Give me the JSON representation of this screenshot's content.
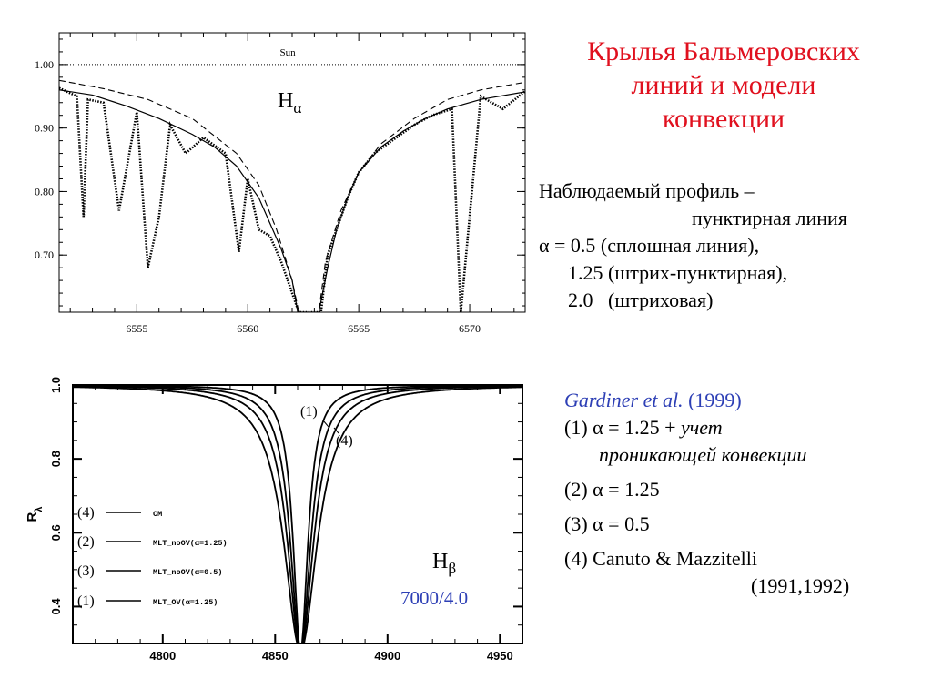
{
  "title": {
    "lines": [
      "Крылья Бальмеровских",
      "линий и модели",
      "конвекции"
    ],
    "color": "#e0101e"
  },
  "description": {
    "line1": "Наблюдаемый профиль –",
    "line2": "пунктирная линия",
    "line3": "α = 0.5 (сплошная линия),",
    "line4": "1.25 (штрих-пунктирная),",
    "line5": "2.0   (штриховая)"
  },
  "reference": {
    "author": "Gardiner et al.",
    "year": "(1999)",
    "item1_prefix": "(1) α = 1.25 +",
    "item1_word": "учет",
    "item1_cont": "проникающей конвекции",
    "item2": "(2) α = 1.25",
    "item3": "(3) α = 0.5",
    "item4": "(4) Canuto & Mazzitelli",
    "item4_years": "(1991,1992)",
    "accent_color": "#2d3fb5"
  },
  "chart_data": [
    {
      "type": "line",
      "title": "",
      "xlabel": "",
      "ylabel": "",
      "xlim": [
        6551.5,
        6572.5
      ],
      "ylim": [
        0.61,
        1.05
      ],
      "x_ticks": [
        6555,
        6560,
        6565,
        6570
      ],
      "x_tick_labels": [
        "6555",
        "6560",
        "6565",
        "6570"
      ],
      "y_ticks": [
        0.7,
        0.8,
        0.9,
        1.0
      ],
      "y_tick_labels": [
        "0.70",
        "0.80",
        "0.90",
        "1.00"
      ],
      "reference_line": {
        "y": 1.0,
        "label": "Sun"
      },
      "line_label": "Hα",
      "line_label_main": "H",
      "line_label_sub": "α",
      "series": [
        {
          "style": "dotted",
          "x": [
            6551.5,
            6552.3,
            6552.6,
            6552.8,
            6553.5,
            6554.2,
            6555.0,
            6555.5,
            6556.0,
            6556.5,
            6557.2,
            6558.0,
            6559.0,
            6559.6,
            6560.0,
            6560.5,
            6561.0,
            6561.5,
            6562.0,
            6562.3,
            6563.3,
            6563.6,
            6564.0,
            6564.5,
            6565.0,
            6565.7,
            6566.5,
            6567.5,
            6568.3,
            6569.2,
            6569.6,
            6570.5,
            6571.5,
            6572.5
          ],
          "y": [
            0.963,
            0.95,
            0.76,
            0.945,
            0.94,
            0.77,
            0.925,
            0.68,
            0.76,
            0.905,
            0.86,
            0.885,
            0.86,
            0.705,
            0.82,
            0.74,
            0.73,
            0.69,
            0.64,
            0.61,
            0.61,
            0.7,
            0.74,
            0.79,
            0.83,
            0.86,
            0.88,
            0.905,
            0.92,
            0.93,
            0.61,
            0.95,
            0.93,
            0.958
          ]
        },
        {
          "style": "solid",
          "x": [
            6551.5,
            6553.0,
            6554.5,
            6556.0,
            6557.5,
            6558.5,
            6559.5,
            6560.5,
            6561.0,
            6561.5,
            6562.0,
            6562.25,
            6563.2,
            6563.6,
            6564.0,
            6564.5,
            6565.0,
            6566.0,
            6567.0,
            6568.0,
            6569.0,
            6570.5,
            6572.5
          ],
          "y": [
            0.96,
            0.952,
            0.935,
            0.915,
            0.89,
            0.87,
            0.84,
            0.79,
            0.75,
            0.71,
            0.66,
            0.61,
            0.61,
            0.68,
            0.74,
            0.79,
            0.83,
            0.87,
            0.895,
            0.915,
            0.93,
            0.945,
            0.957
          ]
        },
        {
          "style": "dashed",
          "x": [
            6551.5,
            6553.5,
            6555.5,
            6557.5,
            6559.5,
            6560.5,
            6561.3,
            6562.0,
            6562.3,
            6563.2,
            6563.5,
            6564.2,
            6565.0,
            6566.0,
            6567.5,
            6569.0,
            6570.5,
            6572.5
          ],
          "y": [
            0.975,
            0.962,
            0.945,
            0.915,
            0.86,
            0.81,
            0.74,
            0.66,
            0.61,
            0.61,
            0.69,
            0.77,
            0.83,
            0.875,
            0.915,
            0.945,
            0.96,
            0.972
          ]
        }
      ]
    },
    {
      "type": "line",
      "title": "",
      "xlabel": "",
      "ylabel": "RA",
      "ylabel_main": "R",
      "ylabel_sub": "λ",
      "xlim": [
        4760,
        4960
      ],
      "ylim": [
        0.3,
        1.0
      ],
      "x_ticks": [
        4800,
        4850,
        4900,
        4950
      ],
      "x_tick_labels": [
        "4800",
        "4850",
        "4900",
        "4950"
      ],
      "y_ticks": [
        0.4,
        0.6,
        0.8,
        1.0
      ],
      "y_tick_labels": [
        "0.4",
        "0.6",
        "0.8",
        "1.0"
      ],
      "line_label": "Hβ",
      "line_label_main": "H",
      "line_label_sub": "β",
      "model_label": "7000/4.0",
      "curve_labels": [
        "(1)",
        "(4)"
      ],
      "legend": [
        {
          "num": "(4)",
          "text": "CM"
        },
        {
          "num": "(2)",
          "text": "MLT_noOV(α=1.25)"
        },
        {
          "num": "(3)",
          "text": "MLT_noOV(α=0.5)"
        },
        {
          "num": "(1)",
          "text": "MLT_OV(α=1.25)"
        }
      ],
      "center": 4861.3,
      "series": [
        {
          "name": "(1)",
          "width": 4.0
        },
        {
          "name": "(2)",
          "width": 5.5
        },
        {
          "name": "(3)",
          "width": 7.0
        },
        {
          "name": "(4)",
          "width": 9.0
        }
      ]
    }
  ]
}
